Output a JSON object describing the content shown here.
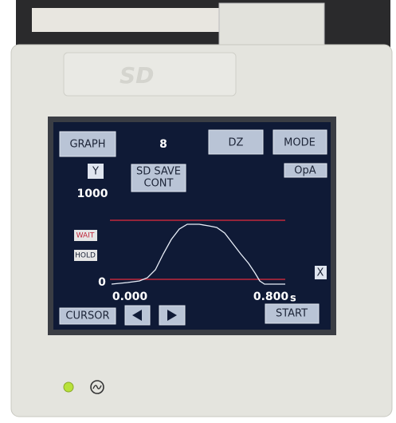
{
  "cover": {
    "logo": "SD"
  },
  "screen": {
    "buttons": {
      "graph": "GRAPH",
      "dz": "DZ",
      "mode": "MODE",
      "sd_save": "SD SAVE",
      "sd_cont": "CONT",
      "opa": "OpA",
      "cursor": "CURSOR",
      "start": "START"
    },
    "channel": "8",
    "y_label": "Y",
    "x_label": "X",
    "y_top": "1000",
    "y_bottom": "0",
    "x_start": "0.000",
    "x_end": "0.800",
    "x_unit": "s",
    "wait": "WAIT",
    "hold": "HOLD"
  }
}
